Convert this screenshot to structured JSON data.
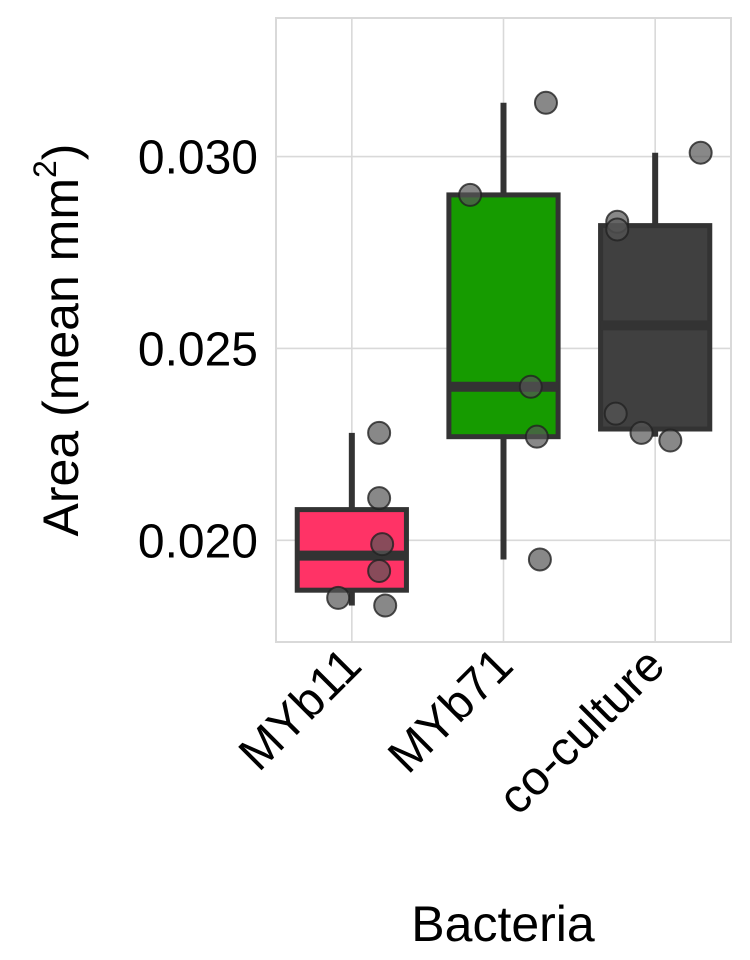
{
  "chart_data": {
    "type": "box",
    "title": "",
    "xlabel": "Bacteria",
    "ylabel": "Area (mean mm",
    "ylabel_superscript": "2",
    "ylabel_close": ")",
    "ylim": [
      0.01735,
      0.03361
    ],
    "yticks": [
      {
        "value": 0.02,
        "label": "0.020"
      },
      {
        "value": 0.025,
        "label": "0.025"
      },
      {
        "value": 0.03,
        "label": "0.030"
      }
    ],
    "grid": true,
    "legend": "none",
    "categories": [
      "MYb11",
      "MYb71",
      "co-culture"
    ],
    "series": [
      {
        "category": "MYb11",
        "color": "#ff3366",
        "box": {
          "lower_whisker": 0.0183,
          "q1": 0.0187,
          "median": 0.0196,
          "q3": 0.0208,
          "upper_whisker": 0.0228
        },
        "points": [
          {
            "x_jitter": 0.18,
            "y": 0.0228
          },
          {
            "x_jitter": 0.18,
            "y": 0.0211
          },
          {
            "x_jitter": 0.2,
            "y": 0.0199
          },
          {
            "x_jitter": 0.18,
            "y": 0.0192
          },
          {
            "x_jitter": -0.09,
            "y": 0.0185
          },
          {
            "x_jitter": 0.22,
            "y": 0.0183
          }
        ]
      },
      {
        "category": "MYb71",
        "color": "#169b00",
        "box": {
          "lower_whisker": 0.0195,
          "q1": 0.0227,
          "median": 0.024,
          "q3": 0.029,
          "upper_whisker": 0.0314
        },
        "points": [
          {
            "x_jitter": 0.28,
            "y": 0.0314
          },
          {
            "x_jitter": -0.22,
            "y": 0.029
          },
          {
            "x_jitter": 0.18,
            "y": 0.024
          },
          {
            "x_jitter": 0.22,
            "y": 0.0227
          },
          {
            "x_jitter": 0.24,
            "y": 0.0195
          }
        ]
      },
      {
        "category": "co-culture",
        "color": "#404040",
        "box": {
          "lower_whisker": 0.0227,
          "q1": 0.0229,
          "median": 0.0256,
          "q3": 0.0282,
          "upper_whisker": 0.0301
        },
        "points": [
          {
            "x_jitter": 0.3,
            "y": 0.0301
          },
          {
            "x_jitter": -0.25,
            "y": 0.0283
          },
          {
            "x_jitter": -0.25,
            "y": 0.0281
          },
          {
            "x_jitter": -0.26,
            "y": 0.0233
          },
          {
            "x_jitter": -0.09,
            "y": 0.0228
          },
          {
            "x_jitter": 0.1,
            "y": 0.0226
          }
        ]
      }
    ],
    "style": {
      "grid_color": "#d9d9d9",
      "panel_border_color": "#d9d9d9",
      "box_line_color": "#333333",
      "point_fill": "#555555",
      "point_stroke": "#222222",
      "point_opacity": 0.7
    }
  }
}
